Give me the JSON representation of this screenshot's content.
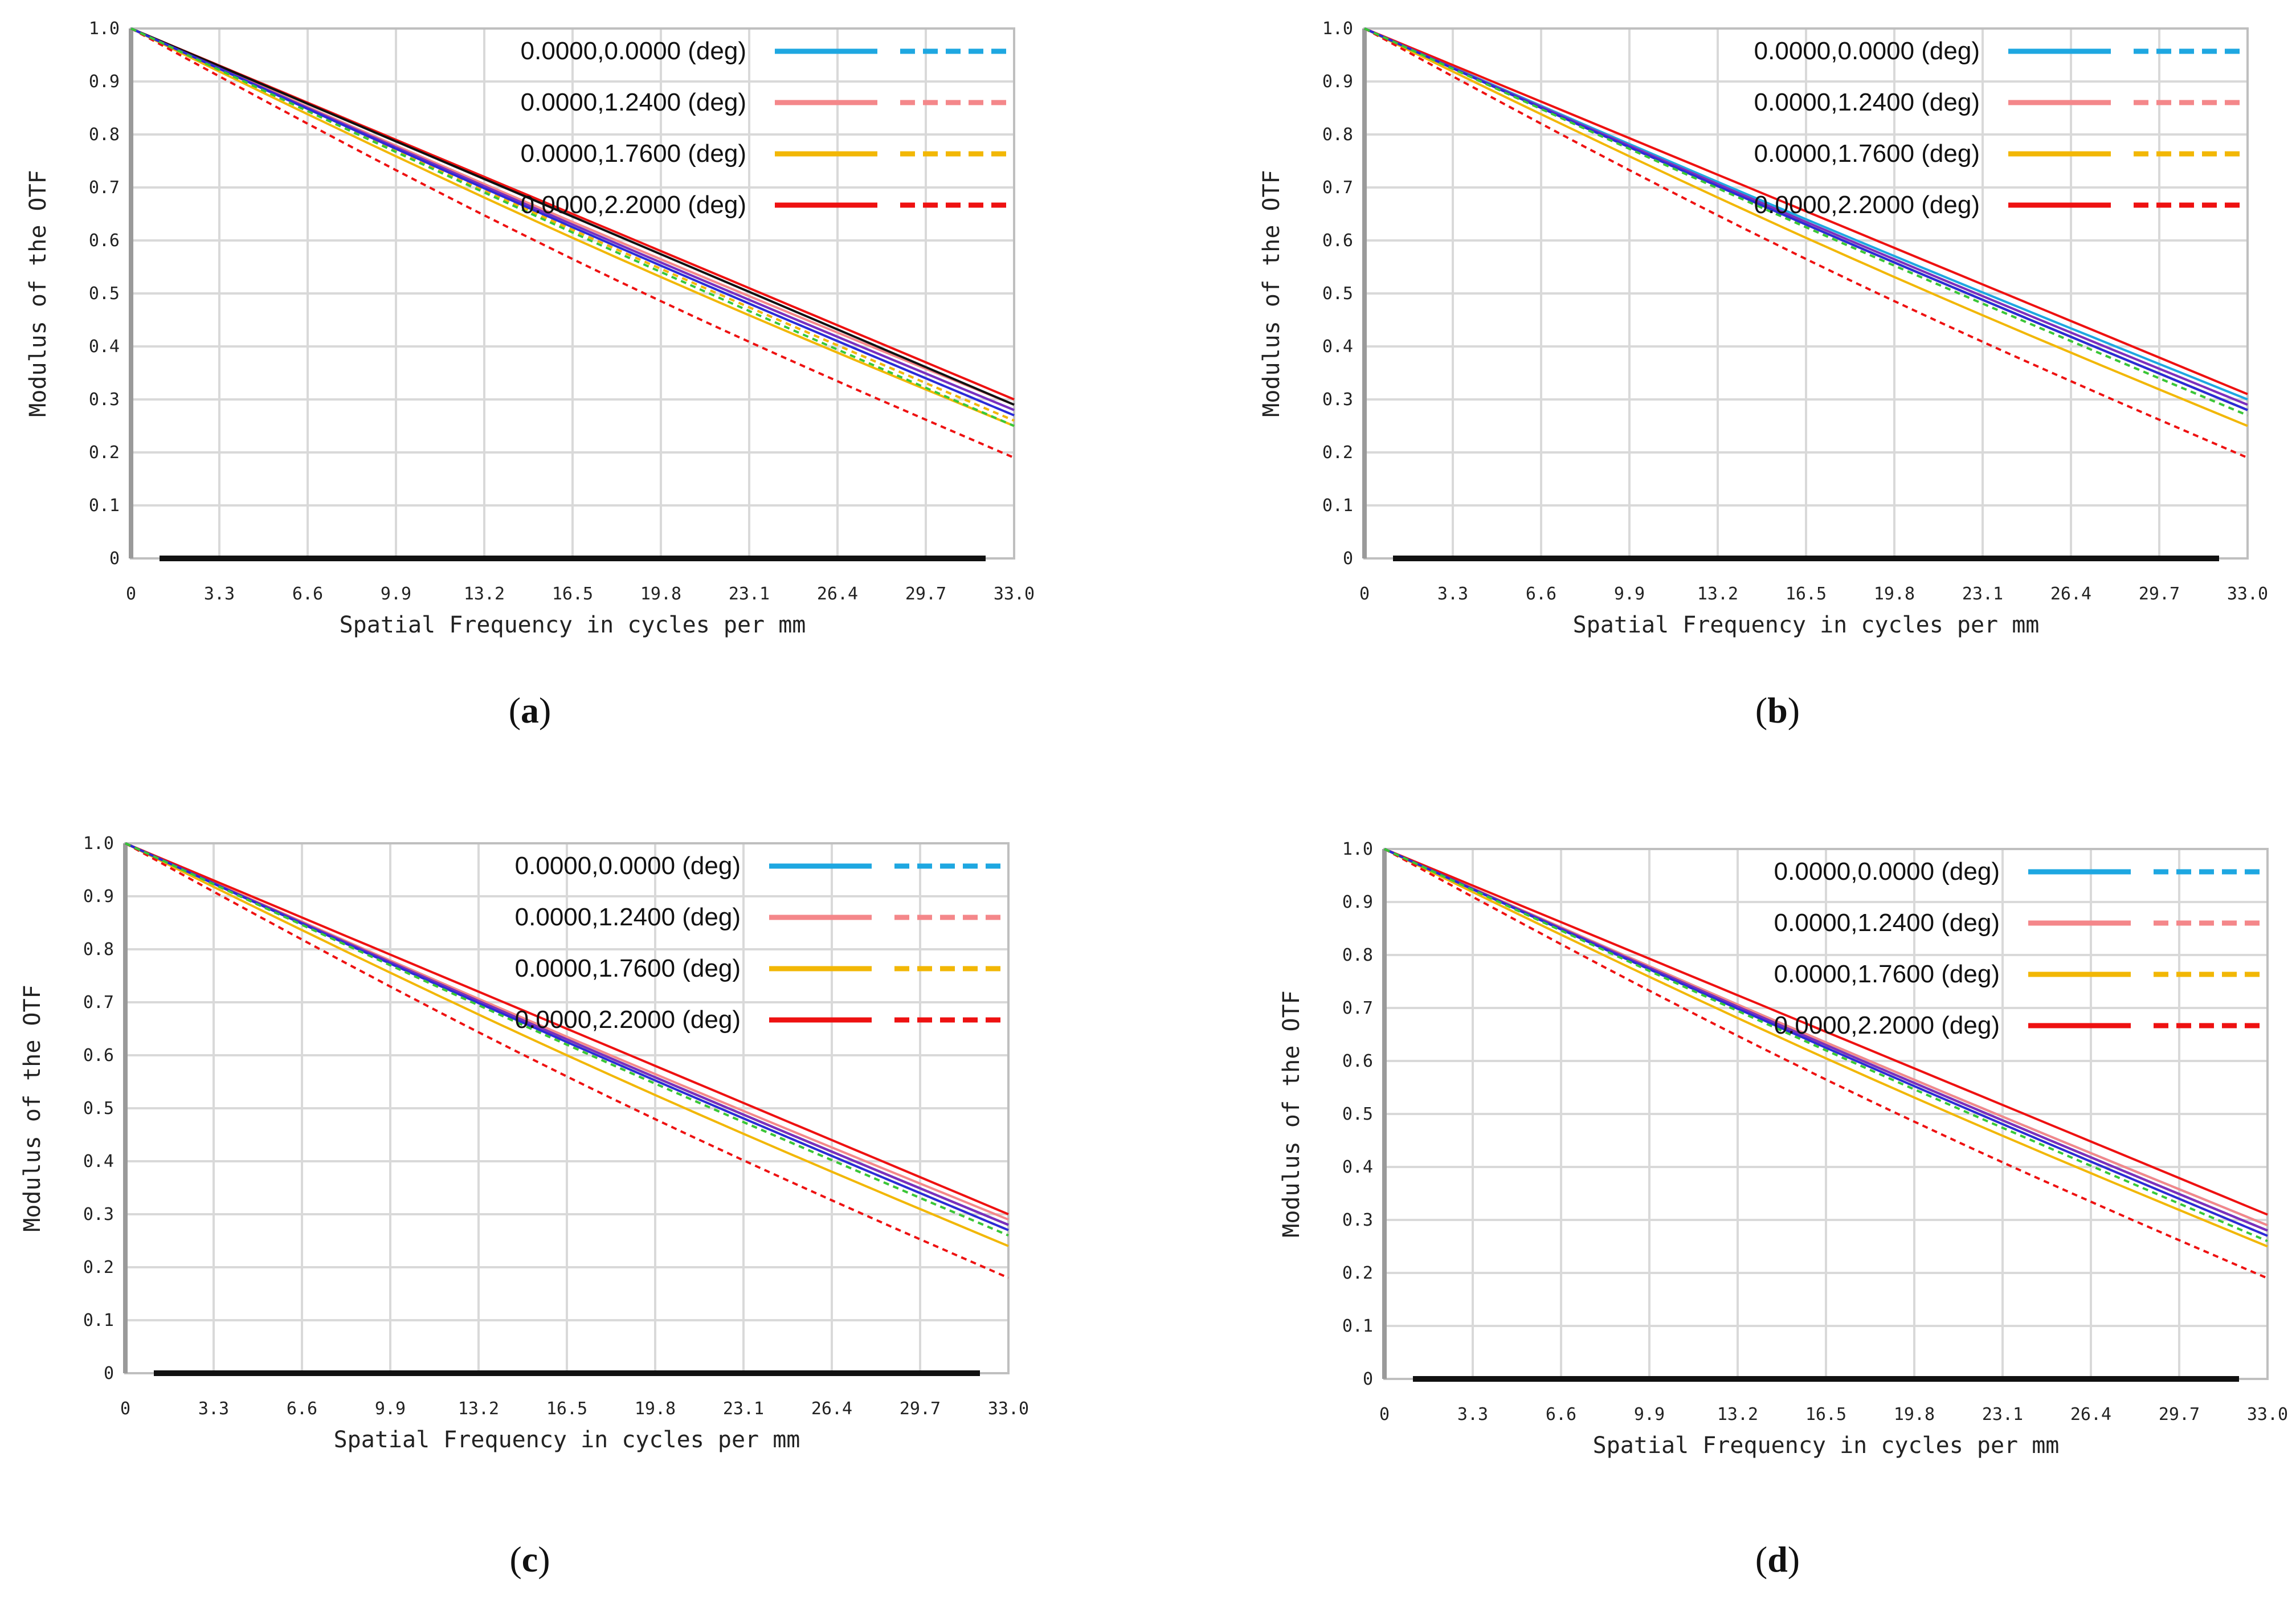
{
  "chart_data": [
    {
      "type": "line",
      "caption": "a",
      "xlabel": "Spatial Frequency in cycles per mm",
      "ylabel": "Modulus of the OTF",
      "xlim": [
        0,
        33.0
      ],
      "ylim": [
        0,
        1.0
      ],
      "x_ticks": [
        "0",
        "3.3",
        "6.6",
        "9.9",
        "13.2",
        "16.5",
        "19.8",
        "23.1",
        "26.4",
        "29.7",
        "33.0"
      ],
      "y_ticks": [
        "0",
        "0.1",
        "0.2",
        "0.3",
        "0.4",
        "0.5",
        "0.6",
        "0.7",
        "0.8",
        "0.9",
        "1.0"
      ],
      "grid": true,
      "legend_position": "top-right",
      "legend": [
        {
          "label": "0.0000,0.0000 (deg)",
          "color": "#1ea7e1"
        },
        {
          "label": "0.0000,1.2400 (deg)",
          "color": "#f4878a"
        },
        {
          "label": "0.0000,1.7600 (deg)",
          "color": "#f2b705"
        },
        {
          "label": "0.0000,2.2000 (deg)",
          "color": "#ee1111"
        }
      ],
      "series": [
        {
          "color": "#1ea7e1",
          "style": "solid",
          "end": 0.28,
          "sag": 0.01
        },
        {
          "color": "#1ea7e1",
          "style": "dashed",
          "end": 0.27,
          "sag": 0.01
        },
        {
          "color": "#f4878a",
          "style": "solid",
          "end": 0.29,
          "sag": 0.01
        },
        {
          "color": "#f4878a",
          "style": "dashed",
          "end": 0.26,
          "sag": 0.01
        },
        {
          "color": "#f2b705",
          "style": "solid",
          "end": 0.25,
          "sag": 0.02
        },
        {
          "color": "#f2b705",
          "style": "dashed",
          "end": 0.26,
          "sag": 0.01
        },
        {
          "color": "#ee1111",
          "style": "solid",
          "end": 0.3,
          "sag": 0.0
        },
        {
          "color": "#ee1111",
          "style": "dashed",
          "end": 0.19,
          "sag": 0.03
        },
        {
          "color": "#111111",
          "style": "solid",
          "end": 0.29,
          "sag": 0.0
        },
        {
          "color": "#7b2fbf",
          "style": "solid",
          "end": 0.28,
          "sag": 0.01
        },
        {
          "color": "#2b2bd8",
          "style": "solid",
          "end": 0.27,
          "sag": 0.01
        },
        {
          "color": "#37c837",
          "style": "dashed",
          "end": 0.25,
          "sag": 0.01
        }
      ]
    },
    {
      "type": "line",
      "caption": "b",
      "xlabel": "Spatial Frequency in cycles per mm",
      "ylabel": "Modulus of the OTF",
      "xlim": [
        0,
        33.0
      ],
      "ylim": [
        0,
        1.0
      ],
      "x_ticks": [
        "0",
        "3.3",
        "6.6",
        "9.9",
        "13.2",
        "16.5",
        "19.8",
        "23.1",
        "26.4",
        "29.7",
        "33.0"
      ],
      "y_ticks": [
        "0",
        "0.1",
        "0.2",
        "0.3",
        "0.4",
        "0.5",
        "0.6",
        "0.7",
        "0.8",
        "0.9",
        "1.0"
      ],
      "grid": true,
      "legend_position": "top-right",
      "legend": [
        {
          "label": "0.0000,0.0000 (deg)",
          "color": "#1ea7e1"
        },
        {
          "label": "0.0000,1.2400 (deg)",
          "color": "#f4878a"
        },
        {
          "label": "0.0000,1.7600 (deg)",
          "color": "#f2b705"
        },
        {
          "label": "0.0000,2.2000 (deg)",
          "color": "#ee1111"
        }
      ],
      "series": [
        {
          "color": "#1ea7e1",
          "style": "solid",
          "end": 0.3,
          "sag": 0.01
        },
        {
          "color": "#1ea7e1",
          "style": "dashed",
          "end": 0.29,
          "sag": 0.01
        },
        {
          "color": "#f4878a",
          "style": "solid",
          "end": 0.29,
          "sag": 0.01
        },
        {
          "color": "#f4878a",
          "style": "dashed",
          "end": 0.27,
          "sag": 0.01
        },
        {
          "color": "#f2b705",
          "style": "solid",
          "end": 0.25,
          "sag": 0.02
        },
        {
          "color": "#f2b705",
          "style": "dashed",
          "end": 0.28,
          "sag": 0.01
        },
        {
          "color": "#ee1111",
          "style": "solid",
          "end": 0.31,
          "sag": 0.0
        },
        {
          "color": "#ee1111",
          "style": "dashed",
          "end": 0.19,
          "sag": 0.03
        },
        {
          "color": "#111111",
          "style": "solid",
          "end": 0.28,
          "sag": 0.01
        },
        {
          "color": "#7b2fbf",
          "style": "solid",
          "end": 0.29,
          "sag": 0.01
        },
        {
          "color": "#2b2bd8",
          "style": "solid",
          "end": 0.28,
          "sag": 0.01
        },
        {
          "color": "#37c837",
          "style": "dashed",
          "end": 0.27,
          "sag": 0.01
        }
      ]
    },
    {
      "type": "line",
      "caption": "c",
      "xlabel": "Spatial Frequency in cycles per mm",
      "ylabel": "Modulus of the OTF",
      "xlim": [
        0,
        33.0
      ],
      "ylim": [
        0,
        1.0
      ],
      "x_ticks": [
        "0",
        "3.3",
        "6.6",
        "9.9",
        "13.2",
        "16.5",
        "19.8",
        "23.1",
        "26.4",
        "29.7",
        "33.0"
      ],
      "y_ticks": [
        "0",
        "0.1",
        "0.2",
        "0.3",
        "0.4",
        "0.5",
        "0.6",
        "0.7",
        "0.8",
        "0.9",
        "1.0"
      ],
      "grid": true,
      "legend_position": "top-right",
      "legend": [
        {
          "label": "0.0000,0.0000 (deg)",
          "color": "#1ea7e1"
        },
        {
          "label": "0.0000,1.2400 (deg)",
          "color": "#f4878a"
        },
        {
          "label": "0.0000,1.7600 (deg)",
          "color": "#f2b705"
        },
        {
          "label": "0.0000,2.2000 (deg)",
          "color": "#ee1111"
        }
      ],
      "series": [
        {
          "color": "#1ea7e1",
          "style": "solid",
          "end": 0.28,
          "sag": 0.01
        },
        {
          "color": "#1ea7e1",
          "style": "dashed",
          "end": 0.27,
          "sag": 0.01
        },
        {
          "color": "#f4878a",
          "style": "solid",
          "end": 0.29,
          "sag": 0.01
        },
        {
          "color": "#f4878a",
          "style": "dashed",
          "end": 0.26,
          "sag": 0.01
        },
        {
          "color": "#f2b705",
          "style": "solid",
          "end": 0.24,
          "sag": 0.02
        },
        {
          "color": "#f2b705",
          "style": "dashed",
          "end": 0.27,
          "sag": 0.01
        },
        {
          "color": "#ee1111",
          "style": "solid",
          "end": 0.3,
          "sag": 0.0
        },
        {
          "color": "#ee1111",
          "style": "dashed",
          "end": 0.18,
          "sag": 0.03
        },
        {
          "color": "#111111",
          "style": "solid",
          "end": 0.28,
          "sag": 0.01
        },
        {
          "color": "#7b2fbf",
          "style": "solid",
          "end": 0.28,
          "sag": 0.01
        },
        {
          "color": "#2b2bd8",
          "style": "solid",
          "end": 0.27,
          "sag": 0.01
        },
        {
          "color": "#37c837",
          "style": "dashed",
          "end": 0.26,
          "sag": 0.01
        }
      ]
    },
    {
      "type": "line",
      "caption": "d",
      "xlabel": "Spatial Frequency in cycles per mm",
      "ylabel": "Modulus of the OTF",
      "xlim": [
        0,
        33.0
      ],
      "ylim": [
        0,
        1.0
      ],
      "x_ticks": [
        "0",
        "3.3",
        "6.6",
        "9.9",
        "13.2",
        "16.5",
        "19.8",
        "23.1",
        "26.4",
        "29.7",
        "33.0"
      ],
      "y_ticks": [
        "0",
        "0.1",
        "0.2",
        "0.3",
        "0.4",
        "0.5",
        "0.6",
        "0.7",
        "0.8",
        "0.9",
        "1.0"
      ],
      "grid": true,
      "legend_position": "top-right",
      "legend": [
        {
          "label": "0.0000,0.0000 (deg)",
          "color": "#1ea7e1"
        },
        {
          "label": "0.0000,1.2400 (deg)",
          "color": "#f4878a"
        },
        {
          "label": "0.0000,1.7600 (deg)",
          "color": "#f2b705"
        },
        {
          "label": "0.0000,2.2000 (deg)",
          "color": "#ee1111"
        }
      ],
      "series": [
        {
          "color": "#1ea7e1",
          "style": "solid",
          "end": 0.29,
          "sag": 0.01
        },
        {
          "color": "#1ea7e1",
          "style": "dashed",
          "end": 0.28,
          "sag": 0.01
        },
        {
          "color": "#f4878a",
          "style": "solid",
          "end": 0.29,
          "sag": 0.01
        },
        {
          "color": "#f4878a",
          "style": "dashed",
          "end": 0.27,
          "sag": 0.01
        },
        {
          "color": "#f2b705",
          "style": "solid",
          "end": 0.25,
          "sag": 0.02
        },
        {
          "color": "#f2b705",
          "style": "dashed",
          "end": 0.27,
          "sag": 0.01
        },
        {
          "color": "#ee1111",
          "style": "solid",
          "end": 0.31,
          "sag": 0.0
        },
        {
          "color": "#ee1111",
          "style": "dashed",
          "end": 0.19,
          "sag": 0.03
        },
        {
          "color": "#111111",
          "style": "solid",
          "end": 0.28,
          "sag": 0.01
        },
        {
          "color": "#7b2fbf",
          "style": "solid",
          "end": 0.28,
          "sag": 0.01
        },
        {
          "color": "#2b2bd8",
          "style": "solid",
          "end": 0.27,
          "sag": 0.01
        },
        {
          "color": "#37c837",
          "style": "dashed",
          "end": 0.26,
          "sag": 0.01
        }
      ]
    }
  ]
}
